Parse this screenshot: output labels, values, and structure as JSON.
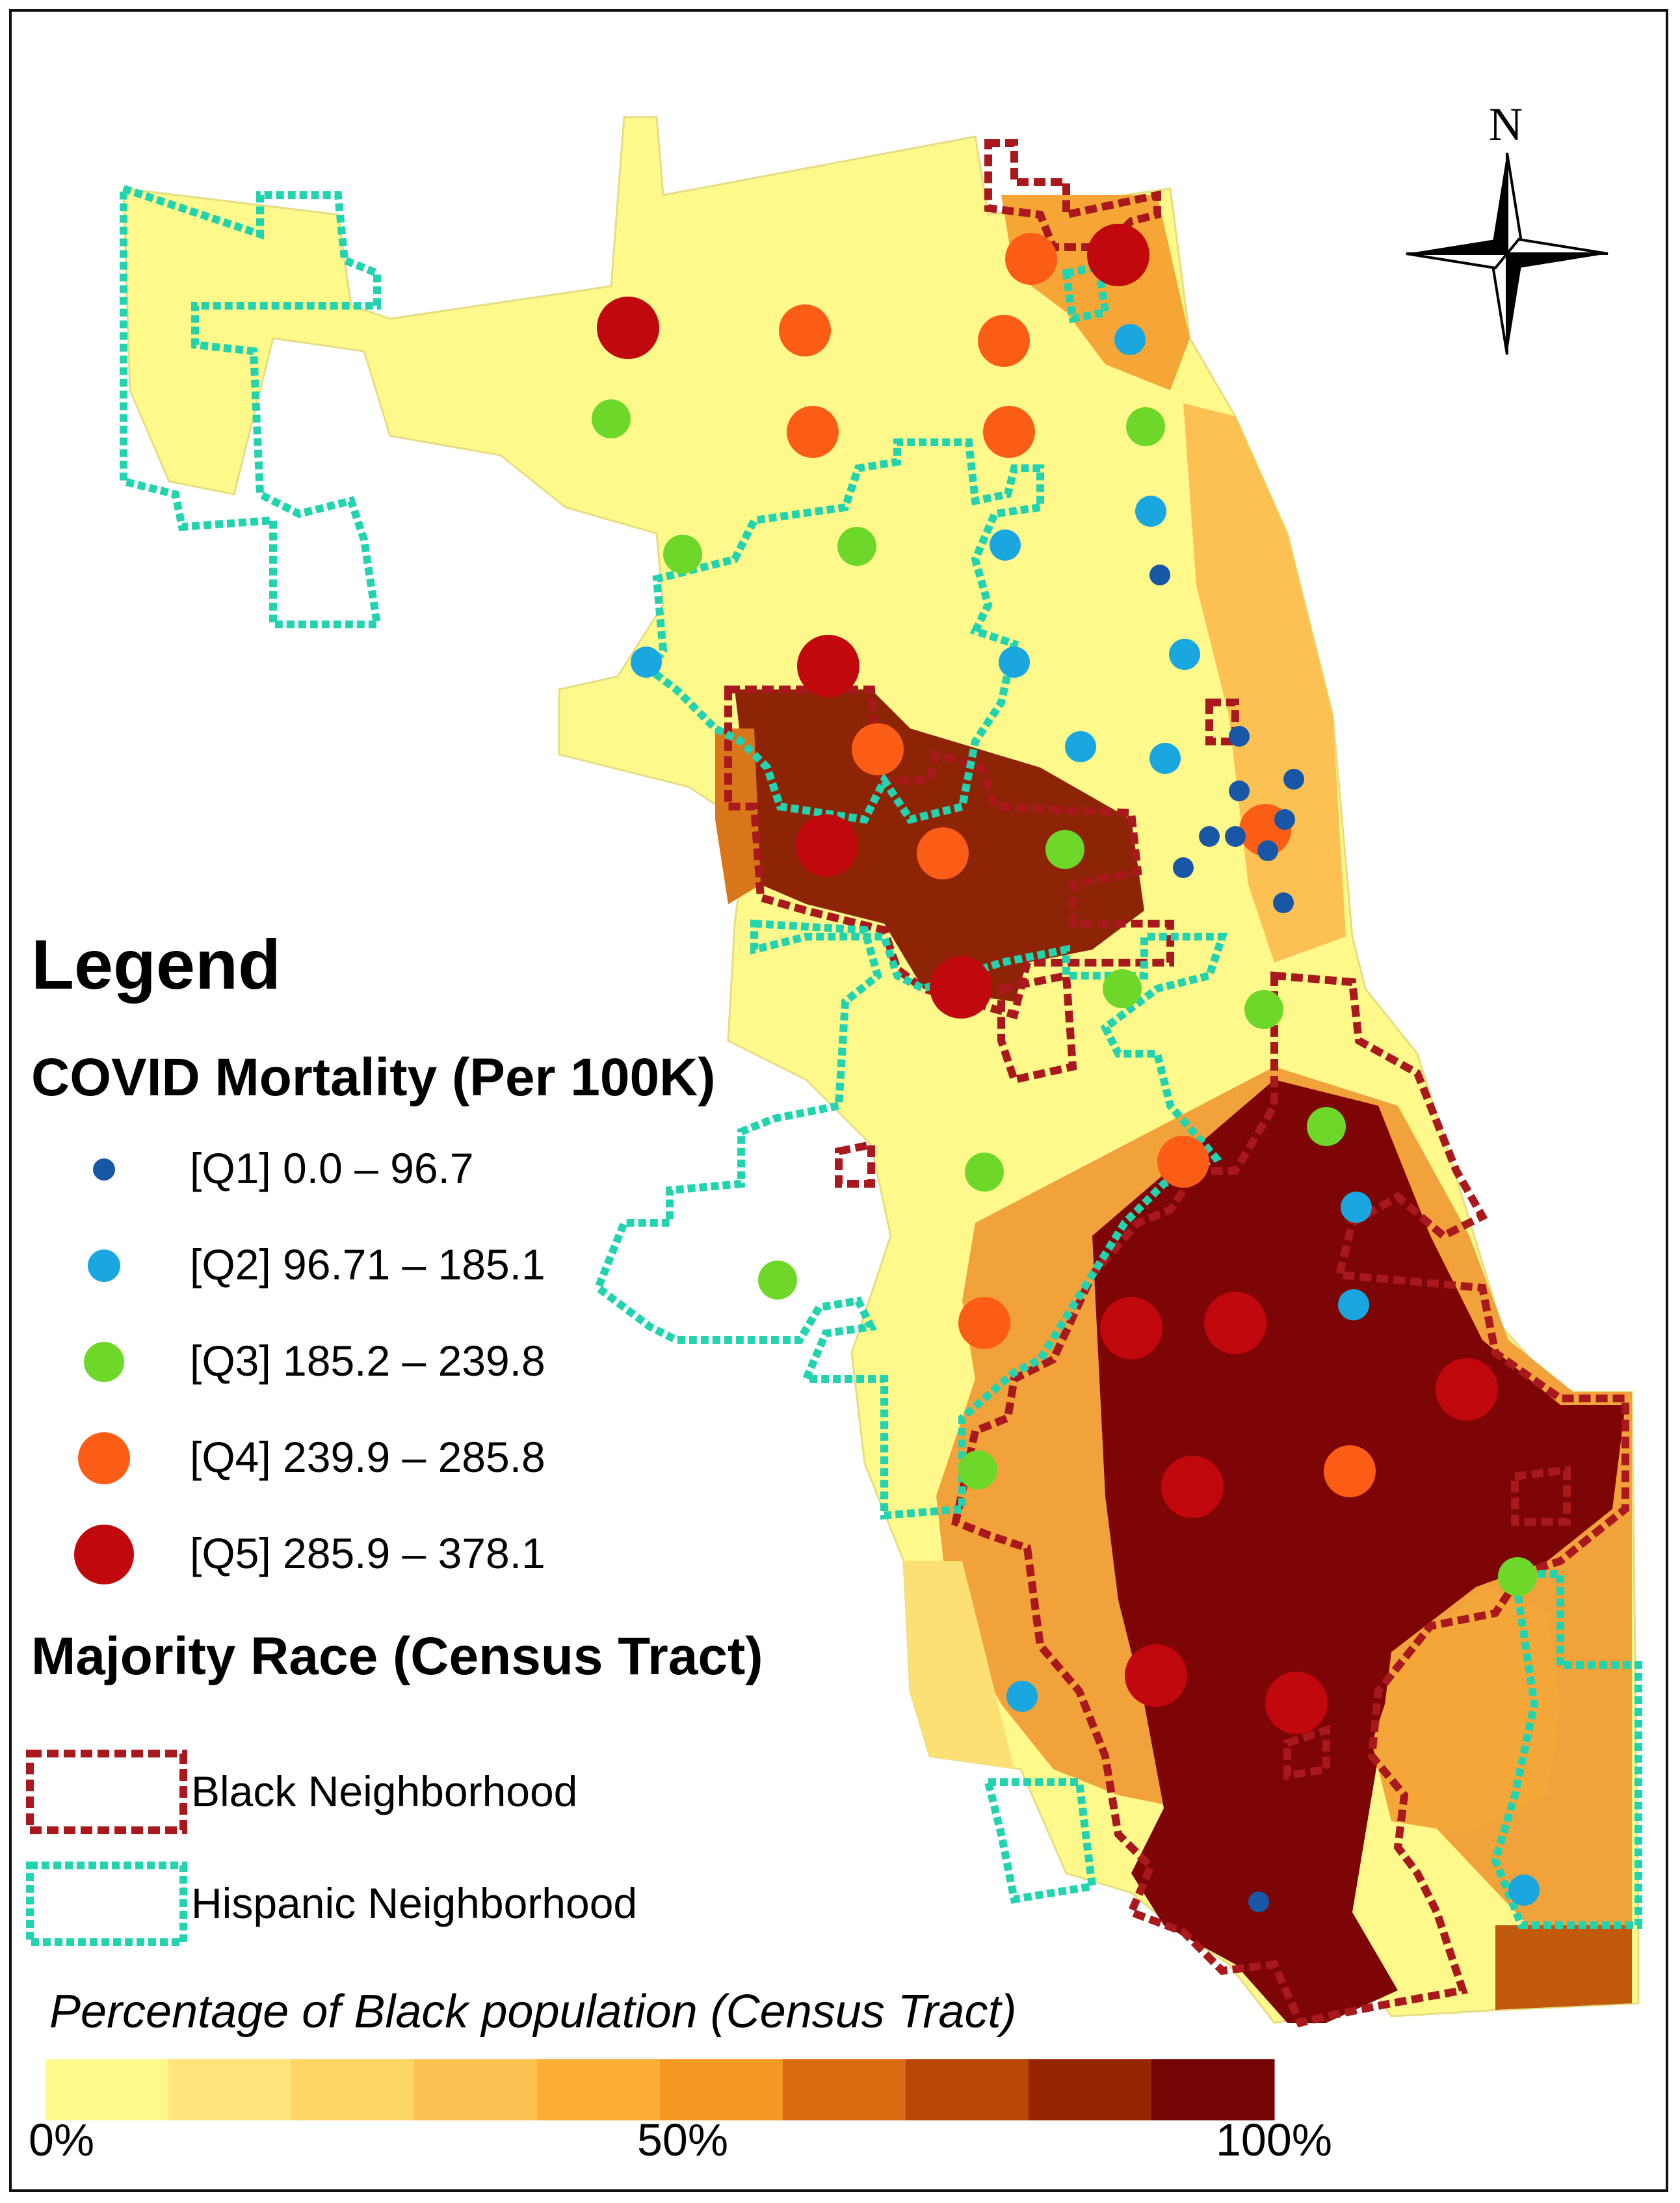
{
  "legend": {
    "title": "Legend",
    "mortality": {
      "title": "COVID Mortality (Per 100K)",
      "classes": [
        {
          "label": "[Q1] 0.0 – 96.7",
          "color": "#1757a6"
        },
        {
          "label": "[Q2] 96.71 – 185.1",
          "color": "#1aa7e0"
        },
        {
          "label": "[Q3] 185.2 – 239.8",
          "color": "#6ed82a"
        },
        {
          "label": "[Q4] 239.9 – 285.8",
          "color": "#fb5d17"
        },
        {
          "label": "[Q5] 285.9 – 378.1",
          "color": "#c1080c"
        }
      ]
    },
    "race": {
      "title": "Majority Race (Census Tract)",
      "items": [
        {
          "label": "Black Neighborhood",
          "color": "#a8181c"
        },
        {
          "label": "Hispanic Neighborhood",
          "color": "#22d3b0"
        }
      ]
    },
    "ramp": {
      "title": "Percentage of Black population (Census Tract)",
      "ticks": [
        "0%",
        "50%",
        "100%"
      ],
      "colors": [
        "#fff98c",
        "#fee47a",
        "#fdd566",
        "#fdc352",
        "#fcae36",
        "#f79822",
        "#d96c10",
        "#b94708",
        "#962504",
        "#750404"
      ]
    }
  },
  "north_arrow": {
    "label": "N"
  },
  "map": {
    "base_color": "#fff98c",
    "black_outline_color": "#a8181c",
    "hispanic_outline_color": "#22d3b0"
  }
}
